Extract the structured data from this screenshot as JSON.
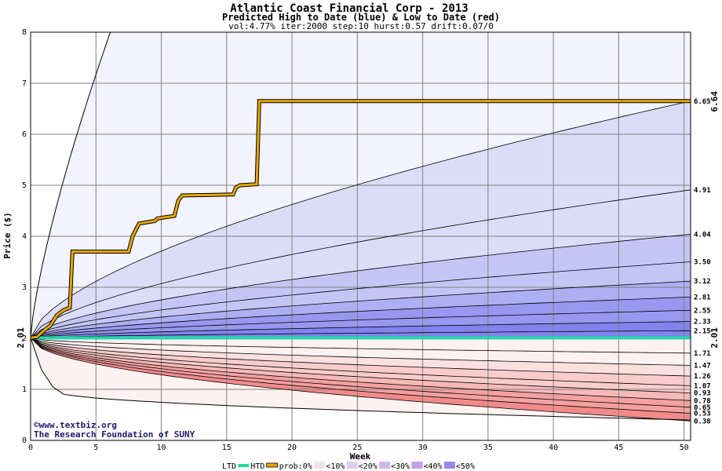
{
  "chart_data": {
    "type": "area",
    "title": "Atlantic Coast Financial Corp - 2013",
    "subtitle": "Predicted High to Date (blue) &  Low to Date (red)",
    "params": "vol:4.77% iter:2000 step:10 hurst:0.57 drift:0.07/0",
    "xlabel": "Week",
    "ylabel": "Price ($)",
    "xlim": [
      0,
      50.5
    ],
    "ylim": [
      0,
      8
    ],
    "x_ticks": [
      0,
      5,
      10,
      15,
      20,
      25,
      30,
      35,
      40,
      45,
      50
    ],
    "y_ticks": [
      0,
      1,
      2,
      3,
      4,
      5,
      6,
      7,
      8
    ],
    "grid": true,
    "start_price": 2.01,
    "start_label": "2.01",
    "high_band_ends": [
      "6.65",
      "4.91",
      "4.04",
      "3.50",
      "3.12",
      "2.81",
      "2.55",
      "2.33",
      "2.15"
    ],
    "high_band_values": [
      6.65,
      4.91,
      4.04,
      3.5,
      3.12,
      2.81,
      2.55,
      2.33,
      2.15
    ],
    "low_band_ends": [
      "1.71",
      "1.47",
      "1.26",
      "1.07",
      "0.93",
      "0.78",
      "0.65",
      "0.53",
      "0.38"
    ],
    "low_band_values": [
      1.71,
      1.47,
      1.26,
      1.07,
      0.93,
      0.78,
      0.65,
      0.53,
      0.38
    ],
    "outer_high_end_week5": 8.0,
    "htd_series": {
      "name": "HTD",
      "points": [
        [
          0,
          2.01
        ],
        [
          0.5,
          2.03
        ],
        [
          1,
          2.15
        ],
        [
          1.5,
          2.25
        ],
        [
          2,
          2.45
        ],
        [
          2.5,
          2.55
        ],
        [
          3,
          2.6
        ],
        [
          3.2,
          3.7
        ],
        [
          7.5,
          3.7
        ],
        [
          7.8,
          4.0
        ],
        [
          8.3,
          4.25
        ],
        [
          9.5,
          4.3
        ],
        [
          9.7,
          4.35
        ],
        [
          11,
          4.4
        ],
        [
          11.3,
          4.7
        ],
        [
          11.6,
          4.8
        ],
        [
          15.5,
          4.82
        ],
        [
          15.7,
          4.95
        ],
        [
          16,
          5.0
        ],
        [
          17.3,
          5.02
        ],
        [
          17.5,
          6.65
        ],
        [
          50.5,
          6.65
        ]
      ]
    },
    "htd_end_label": "6.64",
    "ltd_series": {
      "name": "LTD",
      "value": 2.01
    },
    "legend": {
      "ltd": "LTD",
      "htd": "HTD",
      "prob": "prob:0%",
      "bins": [
        "<10%",
        "<20%",
        "<30%",
        "<40%",
        "<50%"
      ]
    },
    "colors": {
      "htd": "#e8a800",
      "ltd": "#20d8a8",
      "bands_high": [
        "#f3f3fd",
        "#dcdcf8",
        "#c5c5f5",
        "#aeaef2",
        "#9898f0",
        "#8282ee"
      ],
      "bands_low": [
        "#fdf1f1",
        "#fbe0e0",
        "#f9cccc",
        "#f7b8b8",
        "#f5a0a0",
        "#f38a8a"
      ]
    }
  },
  "credit": {
    "line1": "©www.textbiz.org",
    "line2": "The Research Foundation of SUNY"
  }
}
